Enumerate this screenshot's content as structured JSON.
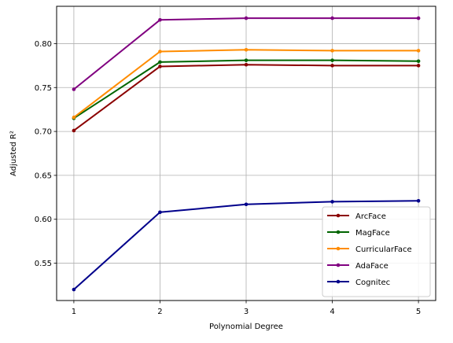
{
  "chart_data": {
    "type": "line",
    "title": "",
    "xlabel": "Polynomial Degree",
    "ylabel": "Adjusted R²",
    "x": [
      1,
      2,
      3,
      4,
      5
    ],
    "xlim": [
      0.8,
      5.2
    ],
    "ylim": [
      0.5075,
      0.8425
    ],
    "xticks": [
      1,
      2,
      3,
      4,
      5
    ],
    "yticks": [
      0.55,
      0.6,
      0.65,
      0.7,
      0.75,
      0.8
    ],
    "ytick_labels": [
      "0.55",
      "0.60",
      "0.65",
      "0.70",
      "0.75",
      "0.80"
    ],
    "grid": true,
    "legend_position": "lower-right",
    "series": [
      {
        "name": "ArcFace",
        "color": "#8b0000",
        "values": [
          0.701,
          0.774,
          0.776,
          0.775,
          0.775
        ]
      },
      {
        "name": "MagFace",
        "color": "#006400",
        "values": [
          0.715,
          0.779,
          0.781,
          0.781,
          0.78
        ]
      },
      {
        "name": "CurricularFace",
        "color": "#ff8c00",
        "values": [
          0.716,
          0.791,
          0.793,
          0.792,
          0.792
        ]
      },
      {
        "name": "AdaFace",
        "color": "#800080",
        "values": [
          0.748,
          0.827,
          0.829,
          0.829,
          0.829
        ]
      },
      {
        "name": "Cognitec",
        "color": "#00008b",
        "values": [
          0.52,
          0.608,
          0.617,
          0.62,
          0.621
        ]
      }
    ]
  }
}
